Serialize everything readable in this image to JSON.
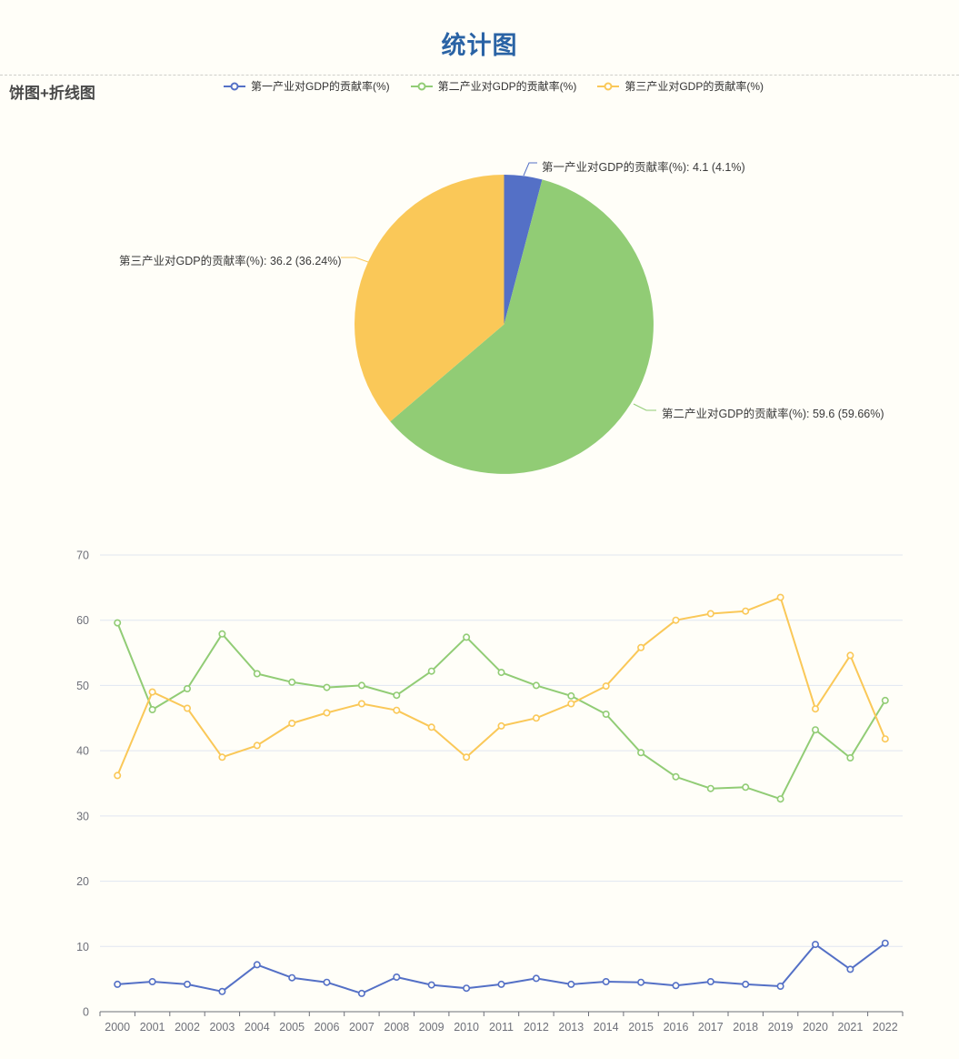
{
  "page": {
    "title": "统计图",
    "section_label": "饼图+折线图"
  },
  "colors": {
    "background": "#FFFEF8",
    "title": "#2A63A5",
    "section_label": "#4A4A4A",
    "axis_label": "#6E7079",
    "axis_line": "#6E7079",
    "gridline": "#E0E6F1",
    "series_primary": "#5470C6",
    "series_secondary": "#91CC75",
    "series_tertiary": "#FAC858"
  },
  "legend": {
    "items": [
      {
        "label": "第一产业对GDP的贡献率(%)",
        "color": "#5470C6"
      },
      {
        "label": "第二产业对GDP的贡献率(%)",
        "color": "#91CC75"
      },
      {
        "label": "第三产业对GDP的贡献率(%)",
        "color": "#FAC858"
      }
    ]
  },
  "chart_data": [
    {
      "type": "pie",
      "title": "",
      "start_angle_deg": 90,
      "clockwise": true,
      "slices": [
        {
          "name": "第一产业对GDP的贡献率(%)",
          "value": 4.1,
          "percent": "4.1%",
          "label": "第一产业对GDP的贡献率(%): 4.1 (4.1%)",
          "color": "#5470C6"
        },
        {
          "name": "第二产业对GDP的贡献率(%)",
          "value": 59.6,
          "percent": "59.66%",
          "label": "第二产业对GDP的贡献率(%): 59.6 (59.66%)",
          "color": "#91CC75"
        },
        {
          "name": "第三产业对GDP的贡献率(%)",
          "value": 36.2,
          "percent": "36.24%",
          "label": "第三产业对GDP的贡献率(%): 36.2 (36.24%)",
          "color": "#FAC858"
        }
      ]
    },
    {
      "type": "line",
      "xlabel": "",
      "ylabel": "",
      "ylim": [
        0,
        70
      ],
      "y_ticks": [
        0,
        10,
        20,
        30,
        40,
        50,
        60,
        70
      ],
      "grid": true,
      "legend_position": "top",
      "marker": "emptyCircle",
      "categories": [
        "2000",
        "2001",
        "2002",
        "2003",
        "2004",
        "2005",
        "2006",
        "2007",
        "2008",
        "2009",
        "2010",
        "2011",
        "2012",
        "2013",
        "2014",
        "2015",
        "2016",
        "2017",
        "2018",
        "2019",
        "2020",
        "2021",
        "2022"
      ],
      "series": [
        {
          "name": "第一产业对GDP的贡献率(%)",
          "color": "#5470C6",
          "values": [
            4.2,
            4.6,
            4.2,
            3.1,
            7.2,
            5.2,
            4.5,
            2.8,
            5.3,
            4.1,
            3.6,
            4.2,
            5.1,
            4.2,
            4.6,
            4.5,
            4.0,
            4.6,
            4.2,
            3.9,
            10.3,
            6.5,
            10.5
          ]
        },
        {
          "name": "第二产业对GDP的贡献率(%)",
          "color": "#91CC75",
          "values": [
            59.6,
            46.3,
            49.5,
            57.9,
            51.8,
            50.5,
            49.7,
            50.0,
            48.5,
            52.2,
            57.4,
            52.0,
            50.0,
            48.4,
            45.6,
            39.7,
            36.0,
            34.2,
            34.4,
            32.6,
            43.2,
            38.9,
            47.7
          ]
        },
        {
          "name": "第三产业对GDP的贡献率(%)",
          "color": "#FAC858",
          "values": [
            36.2,
            49.0,
            46.5,
            39.0,
            40.8,
            44.2,
            45.8,
            47.2,
            46.2,
            43.6,
            39.0,
            43.8,
            45.0,
            47.2,
            49.9,
            55.8,
            60.0,
            61.0,
            61.4,
            63.5,
            46.4,
            54.6,
            41.8
          ]
        }
      ]
    }
  ]
}
